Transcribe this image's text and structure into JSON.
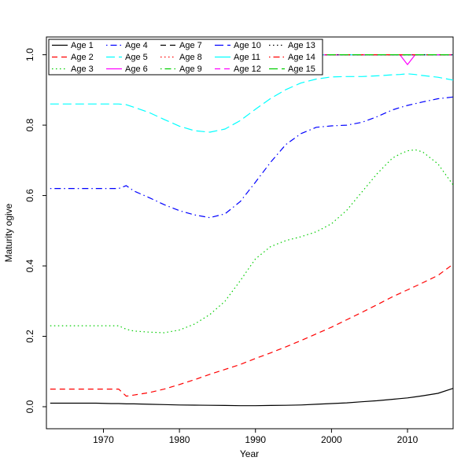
{
  "figure": {
    "background": "#FFFFFF"
  },
  "chart_data": {
    "type": "line",
    "title": "",
    "xlabel": "Year",
    "ylabel": "Maturity ogive",
    "xlim": [
      1962.5,
      2016.0
    ],
    "ylim": [
      0,
      1
    ],
    "x_ticks": [
      1970,
      1980,
      1990,
      2000,
      2010
    ],
    "x_tick_labels": [
      "1970",
      "1980",
      "1990",
      "2000",
      "2010"
    ],
    "y_ticks": [
      0.0,
      0.2,
      0.4,
      0.6,
      0.8,
      1.0
    ],
    "y_tick_labels": [
      "0.0",
      "0.2",
      "0.4",
      "0.6",
      "0.8",
      "1.0"
    ],
    "grid": false,
    "legend": {
      "position": "top-left",
      "columns": 5,
      "rows": 3,
      "order": "column-major",
      "border": true,
      "background": "#FFFFFF"
    },
    "x": [
      1963,
      1965,
      1967,
      1969,
      1971,
      1972,
      1973,
      1974,
      1976,
      1978,
      1980,
      1982,
      1984,
      1986,
      1988,
      1990,
      1992,
      1994,
      1996,
      1998,
      2000,
      2002,
      2004,
      2006,
      2008,
      2009,
      2010,
      2011,
      2012,
      2014,
      2016
    ],
    "series": [
      {
        "name": "Age 1",
        "color": "#000000",
        "linetype": "solid",
        "values": [
          0.01,
          0.01,
          0.01,
          0.01,
          0.009,
          0.009,
          0.008,
          0.008,
          0.007,
          0.006,
          0.005,
          0.0045,
          0.004,
          0.0035,
          0.003,
          0.003,
          0.0035,
          0.004,
          0.005,
          0.007,
          0.009,
          0.011,
          0.014,
          0.017,
          0.021,
          0.023,
          0.025,
          0.028,
          0.031,
          0.038,
          0.052
        ]
      },
      {
        "name": "Age 2",
        "color": "#FF0000",
        "linetype": "dashed",
        "values": [
          0.05,
          0.05,
          0.05,
          0.05,
          0.05,
          0.05,
          0.03,
          0.033,
          0.04,
          0.05,
          0.063,
          0.077,
          0.092,
          0.106,
          0.12,
          0.137,
          0.153,
          0.17,
          0.188,
          0.207,
          0.226,
          0.247,
          0.268,
          0.29,
          0.312,
          0.322,
          0.332,
          0.342,
          0.352,
          0.373,
          0.405
        ]
      },
      {
        "name": "Age 3",
        "color": "#00CD00",
        "linetype": "dotted",
        "values": [
          0.23,
          0.23,
          0.23,
          0.23,
          0.23,
          0.23,
          0.22,
          0.215,
          0.212,
          0.21,
          0.218,
          0.235,
          0.262,
          0.3,
          0.358,
          0.42,
          0.455,
          0.472,
          0.483,
          0.497,
          0.52,
          0.558,
          0.61,
          0.662,
          0.706,
          0.718,
          0.727,
          0.73,
          0.724,
          0.69,
          0.63
        ]
      },
      {
        "name": "Age 4",
        "color": "#0000FF",
        "linetype": "dotdash",
        "values": [
          0.62,
          0.62,
          0.62,
          0.62,
          0.62,
          0.62,
          0.628,
          0.613,
          0.594,
          0.574,
          0.557,
          0.545,
          0.537,
          0.548,
          0.583,
          0.638,
          0.695,
          0.745,
          0.776,
          0.794,
          0.798,
          0.8,
          0.808,
          0.824,
          0.843,
          0.85,
          0.856,
          0.861,
          0.866,
          0.875,
          0.88
        ]
      },
      {
        "name": "Age 5",
        "color": "#00FFFF",
        "linetype": "longdash",
        "values": [
          0.86,
          0.86,
          0.86,
          0.86,
          0.86,
          0.86,
          0.858,
          0.851,
          0.836,
          0.816,
          0.797,
          0.784,
          0.78,
          0.789,
          0.813,
          0.845,
          0.876,
          0.901,
          0.92,
          0.931,
          0.937,
          0.938,
          0.938,
          0.94,
          0.943,
          0.944,
          0.946,
          0.944,
          0.941,
          0.936,
          0.928
        ]
      },
      {
        "name": "Age 6",
        "color": "#FF00FF",
        "linetype": "solid",
        "values": [
          1,
          1,
          1,
          1,
          1,
          1,
          1,
          1,
          1,
          1,
          1,
          1,
          1,
          1,
          1,
          1,
          1,
          1,
          1,
          1,
          1,
          1,
          1,
          1,
          1,
          1,
          0.972,
          1,
          1,
          1,
          1
        ]
      },
      {
        "name": "Age 7",
        "color": "#000000",
        "linetype": "dashed",
        "constant": 1.0
      },
      {
        "name": "Age 8",
        "color": "#FF0000",
        "linetype": "dotted",
        "constant": 1.0
      },
      {
        "name": "Age 9",
        "color": "#00CD00",
        "linetype": "dotdash",
        "constant": 1.0
      },
      {
        "name": "Age 10",
        "color": "#0000FF",
        "linetype": "longdash",
        "constant": 1.0
      },
      {
        "name": "Age 11",
        "color": "#00FFFF",
        "linetype": "solid",
        "constant": 1.0
      },
      {
        "name": "Age 12",
        "color": "#FF00FF",
        "linetype": "dashed",
        "constant": 1.0
      },
      {
        "name": "Age 13",
        "color": "#000000",
        "linetype": "dotted",
        "constant": 1.0
      },
      {
        "name": "Age 14",
        "color": "#FF0000",
        "linetype": "dotdash",
        "constant": 1.0
      },
      {
        "name": "Age 15",
        "color": "#00CD00",
        "linetype": "longdash",
        "constant": 1.0
      }
    ]
  }
}
